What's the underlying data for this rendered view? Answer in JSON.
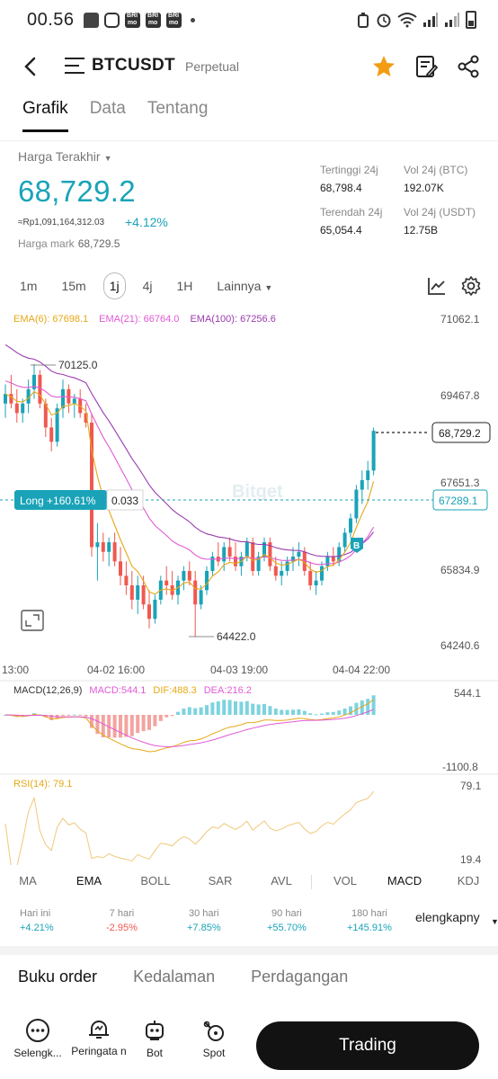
{
  "status_bar": {
    "time": "00.56",
    "app_icons": [
      "BRI mo",
      "BRI mo",
      "BRI mo"
    ]
  },
  "header": {
    "symbol": "BTCUSDT",
    "contract": "Perpetual",
    "accent": "#f39c12"
  },
  "tabs": [
    {
      "label": "Grafik"
    },
    {
      "label": "Data"
    },
    {
      "label": "Tentang"
    }
  ],
  "price": {
    "label": "Harga Terakhir",
    "last": "68,729.2",
    "idr": "≈Rp1,091,164,312.03",
    "change": "+4.12%",
    "mark_label": "Harga mark",
    "mark_value": "68,729.5",
    "color": "#1aa3b8"
  },
  "stats": {
    "high_label": "Tertinggi 24j",
    "high": "68,798.4",
    "low_label": "Terendah 24j",
    "low": "65,054.4",
    "vol_btc_label": "Vol 24j (BTC)",
    "vol_btc": "192.07K",
    "vol_usdt_label": "Vol 24j (USDT)",
    "vol_usdt": "12.75B"
  },
  "timeframes": [
    "1m",
    "15m",
    "1j",
    "4j",
    "1H",
    "Lainnya"
  ],
  "selected_timeframe": "1j",
  "ema_legend": {
    "ema6": "EMA(6): 67698.1",
    "ema21": "EMA(21): 66764.0",
    "ema100": "EMA(100): 67256.6"
  },
  "chart": {
    "y_ticks": [
      "71062.1",
      "69467.8",
      "67651.3",
      "65834.9",
      "64240.6"
    ],
    "x_ticks": [
      "13:00",
      "04-02 16:00",
      "04-03 19:00",
      "04-04 22:00"
    ],
    "high_marker": "70125.0",
    "low_marker": "64422.0",
    "last_price_tag": "68,729.2",
    "position_label": "Long +160.61%",
    "position_size": "0.033",
    "position_price": "67289.1",
    "watermark": "Bitget",
    "up_color": "#1aa3b8",
    "down_color": "#f0584f"
  },
  "chart_data": {
    "type": "candlestick",
    "interval": "1j",
    "ohlc_approx": [
      [
        69300,
        69700,
        69000,
        69500
      ],
      [
        69500,
        69900,
        69200,
        69300
      ],
      [
        69300,
        69600,
        68900,
        69100
      ],
      [
        69100,
        69400,
        68900,
        69300
      ],
      [
        69300,
        69800,
        69100,
        69600
      ],
      [
        69600,
        70125,
        69400,
        69900
      ],
      [
        69900,
        70000,
        69200,
        69300
      ],
      [
        69300,
        69400,
        68600,
        68800
      ],
      [
        68800,
        69000,
        68300,
        68500
      ],
      [
        68500,
        69300,
        68400,
        69200
      ],
      [
        69200,
        69800,
        69000,
        69600
      ],
      [
        69600,
        69700,
        69100,
        69300
      ],
      [
        69300,
        69500,
        69000,
        69400
      ],
      [
        69400,
        69600,
        69000,
        69100
      ],
      [
        69100,
        69300,
        68800,
        68900
      ],
      [
        68900,
        69100,
        66100,
        66300
      ],
      [
        66300,
        66800,
        65600,
        66400
      ],
      [
        66400,
        66600,
        66000,
        66200
      ],
      [
        66200,
        66500,
        65900,
        66400
      ],
      [
        66400,
        66600,
        65900,
        66000
      ],
      [
        66000,
        66300,
        65500,
        65700
      ],
      [
        65700,
        66000,
        65300,
        65500
      ],
      [
        65500,
        65800,
        65000,
        65200
      ],
      [
        65200,
        65700,
        64900,
        65500
      ],
      [
        65500,
        65700,
        65000,
        65100
      ],
      [
        65100,
        65400,
        64600,
        64800
      ],
      [
        64800,
        65300,
        64700,
        65200
      ],
      [
        65200,
        65700,
        65100,
        65600
      ],
      [
        65600,
        65900,
        65300,
        65500
      ],
      [
        65500,
        65800,
        65200,
        65300
      ],
      [
        65300,
        65700,
        65100,
        65600
      ],
      [
        65600,
        65900,
        65400,
        65800
      ],
      [
        65800,
        66000,
        65500,
        65600
      ],
      [
        65600,
        65800,
        64422,
        65100
      ],
      [
        65100,
        65500,
        65000,
        65400
      ],
      [
        65400,
        65900,
        65300,
        65800
      ],
      [
        65800,
        66200,
        65700,
        66100
      ],
      [
        66100,
        66400,
        65900,
        66000
      ],
      [
        66000,
        66400,
        65800,
        66300
      ],
      [
        66300,
        66500,
        66000,
        66100
      ],
      [
        66100,
        66400,
        65800,
        65900
      ],
      [
        65900,
        66200,
        65700,
        66100
      ],
      [
        66100,
        66500,
        66000,
        66400
      ],
      [
        66400,
        66500,
        65700,
        65800
      ],
      [
        65800,
        66200,
        65700,
        66100
      ],
      [
        66100,
        66500,
        66000,
        66400
      ],
      [
        66400,
        66500,
        65800,
        65900
      ],
      [
        65900,
        66100,
        65600,
        65700
      ],
      [
        65700,
        66000,
        65500,
        65800
      ],
      [
        65800,
        66100,
        65700,
        66000
      ],
      [
        66000,
        66300,
        65800,
        66100
      ],
      [
        66100,
        66400,
        65900,
        66200
      ],
      [
        66200,
        66300,
        65700,
        65800
      ],
      [
        65800,
        66000,
        65400,
        65500
      ],
      [
        65500,
        65800,
        65300,
        65600
      ],
      [
        65600,
        66000,
        65500,
        65900
      ],
      [
        65900,
        66200,
        65800,
        66100
      ],
      [
        66100,
        66300,
        65900,
        66000
      ],
      [
        66000,
        66400,
        65900,
        66300
      ],
      [
        66300,
        66700,
        66200,
        66600
      ],
      [
        66600,
        67000,
        66500,
        66900
      ],
      [
        66900,
        67600,
        66800,
        67500
      ],
      [
        67500,
        67900,
        67200,
        67700
      ],
      [
        67700,
        68100,
        67500,
        67900
      ],
      [
        67900,
        68798,
        67800,
        68729
      ]
    ],
    "ylim": [
      64240.6,
      71062.1
    ],
    "macd": {
      "label": "MACD(12,26,9)",
      "macd": "MACD:544.1",
      "dif": "DIF:488.3",
      "dea": "DEA:216.2",
      "y_ticks": [
        "544.1",
        "-1100.8"
      ]
    },
    "rsi": {
      "label": "RSI(14): 79.1",
      "y_ticks": [
        "79.1",
        "19.4"
      ]
    }
  },
  "indicator_tabs": [
    "MA",
    "EMA",
    "BOLL",
    "SAR",
    "AVL",
    "VOL",
    "MACD",
    "KDJ"
  ],
  "performance": [
    {
      "label": "Hari ini",
      "value": "+4.21%",
      "color": "#1aa3b8"
    },
    {
      "label": "7 hari",
      "value": "-2.95%",
      "color": "#f0584f"
    },
    {
      "label": "30 hari",
      "value": "+7.85%",
      "color": "#1aa3b8"
    },
    {
      "label": "90 hari",
      "value": "+55.70%",
      "color": "#1aa3b8"
    },
    {
      "label": "180 hari",
      "value": "+145.91%",
      "color": "#1aa3b8"
    }
  ],
  "performance_more": "elengkapny",
  "orderbook_tabs": [
    "Buku order",
    "Kedalaman",
    "Perdagangan"
  ],
  "bottom_bar": {
    "items": [
      "Selengk...",
      "Peringata n",
      "Bot",
      "Spot"
    ],
    "trade_label": "Trading"
  }
}
